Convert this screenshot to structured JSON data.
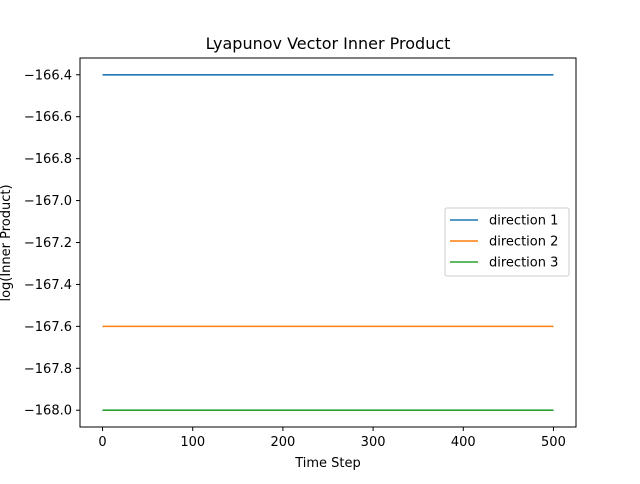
{
  "chart_data": {
    "type": "line",
    "title": "Lyapunov Vector Inner Product",
    "xlabel": "Time Step",
    "ylabel": "log(Inner Product)",
    "xlim": [
      -25,
      525
    ],
    "ylim": [
      -168.08,
      -166.32
    ],
    "xticks": [
      0,
      100,
      200,
      300,
      400,
      500
    ],
    "xtick_labels": [
      "0",
      "100",
      "200",
      "300",
      "400",
      "500"
    ],
    "yticks": [
      -168.0,
      -167.8,
      -167.6,
      -167.4,
      -167.2,
      -167.0,
      -166.8,
      -166.6,
      -166.4
    ],
    "ytick_labels": [
      "−168.0",
      "−167.8",
      "−167.6",
      "−167.4",
      "−167.2",
      "−167.0",
      "−166.8",
      "−166.6",
      "−166.4"
    ],
    "grid": false,
    "legend_position": "center-right",
    "series": [
      {
        "name": "direction 1",
        "color": "#1f77b4",
        "x": [
          0,
          500
        ],
        "y": [
          -166.4,
          -166.4
        ]
      },
      {
        "name": "direction 2",
        "color": "#ff7f0e",
        "x": [
          0,
          500
        ],
        "y": [
          -167.6,
          -167.6
        ]
      },
      {
        "name": "direction 3",
        "color": "#2ca02c",
        "x": [
          0,
          500
        ],
        "y": [
          -168.0,
          -168.0
        ]
      }
    ]
  }
}
